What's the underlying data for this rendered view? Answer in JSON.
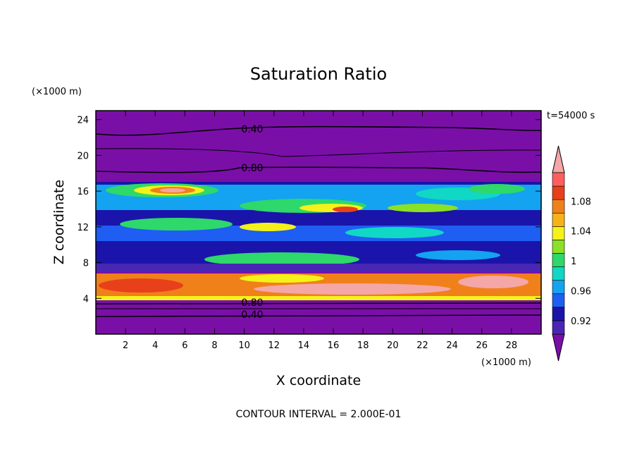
{
  "chart_data": {
    "type": "heatmap",
    "title": "Saturation Ratio",
    "time_label": "t=54000 s",
    "xlabel": "X coordinate",
    "ylabel": "Z coordinate",
    "x_unit": "(×1000 m)",
    "y_unit": "(×1000 m)",
    "xlim": [
      0,
      30
    ],
    "ylim": [
      0,
      25
    ],
    "x_ticks": [
      "2",
      "4",
      "6",
      "8",
      "10",
      "12",
      "14",
      "16",
      "18",
      "20",
      "22",
      "24",
      "26",
      "28"
    ],
    "y_ticks": [
      "4",
      "8",
      "12",
      "16",
      "20",
      "24"
    ],
    "contour_interval_label": "CONTOUR INTERVAL = 2.000E-01",
    "contour_labels": [
      "0.40",
      "0.80",
      "0.80",
      "0.40"
    ],
    "colorbar": {
      "levels": [
        0.92,
        0.94,
        0.96,
        0.98,
        1.0,
        1.02,
        1.04,
        1.06,
        1.08,
        1.1
      ],
      "tick_labels": [
        "0.92",
        "0.96",
        "1",
        "1.04",
        "1.08"
      ],
      "colors": [
        "#7a0fa8",
        "#4a26b4",
        "#1a14aa",
        "#1e5ef2",
        "#13a3f0",
        "#10d8c4",
        "#2ed86a",
        "#8ce025",
        "#f4f21a",
        "#f5b319",
        "#f0801a",
        "#e8401a",
        "#ff5e5e",
        "#f5a6a6"
      ]
    },
    "background_color": "#7a0fa8"
  }
}
